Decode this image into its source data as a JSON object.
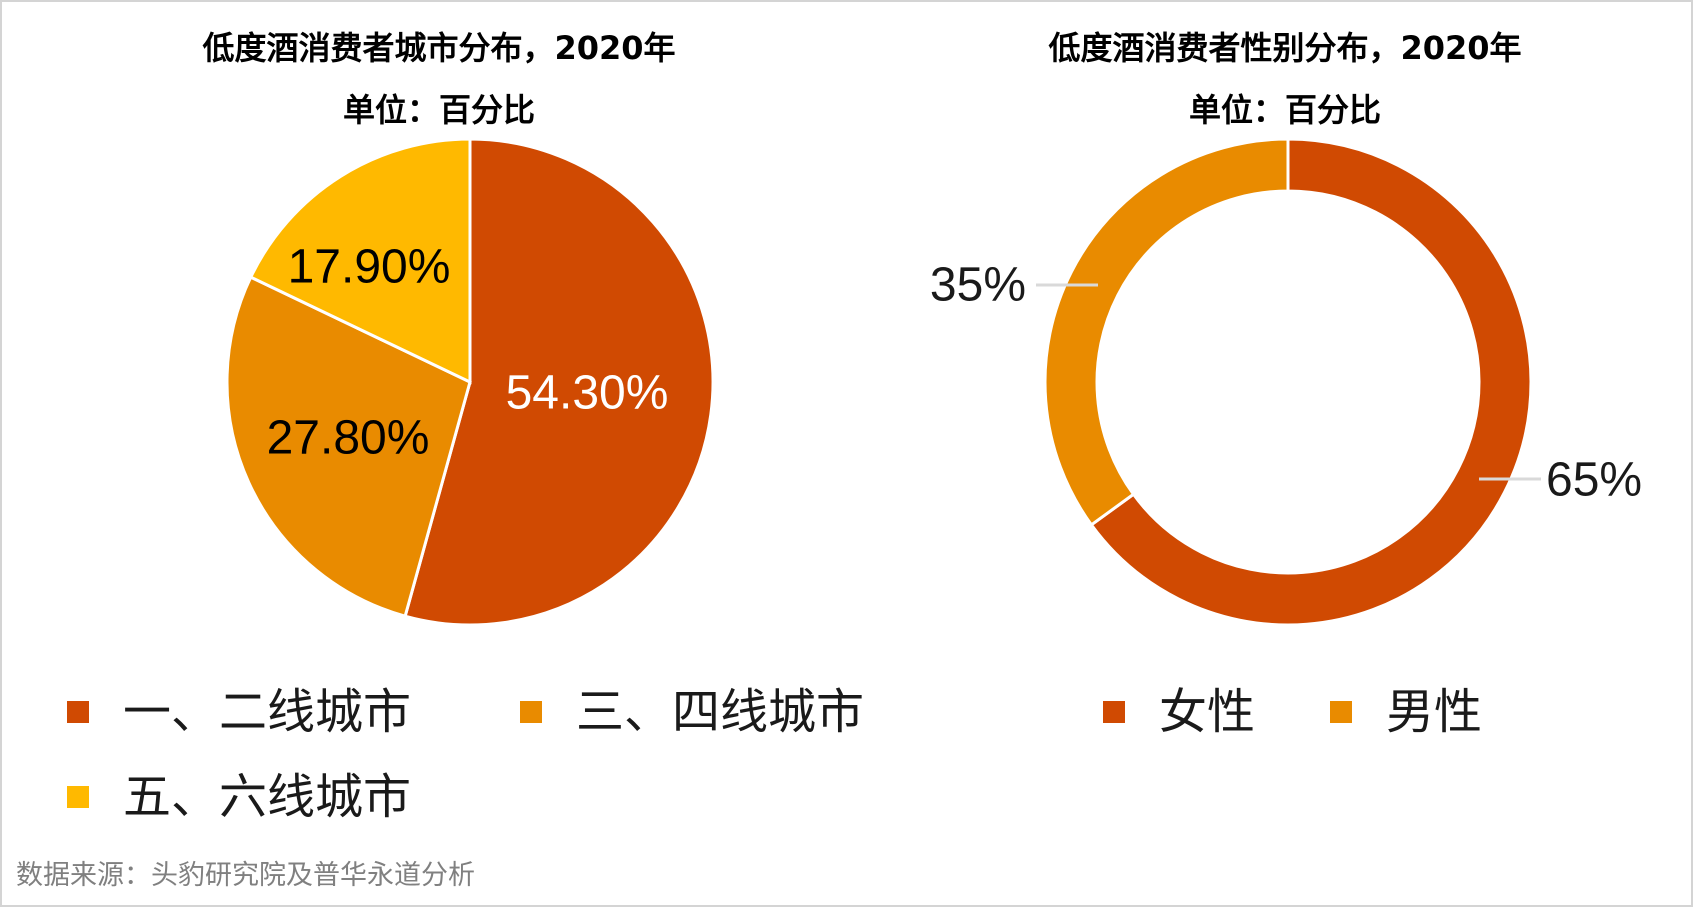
{
  "source": "数据来源：头豹研究院及普华永道分析",
  "chart_data": [
    {
      "type": "pie",
      "title": "低度酒消费者城市分布，2020年",
      "subtitle": "单位：百分比",
      "categories": [
        "一、二线城市",
        "三、四线城市",
        "五、六线城市"
      ],
      "values": [
        54.3,
        27.8,
        17.9
      ],
      "data_labels": [
        "54.30%",
        "27.80%",
        "17.90%"
      ],
      "colors": [
        "#D04A02",
        "#E98B00",
        "#FFB900"
      ],
      "legend_position": "bottom"
    },
    {
      "type": "pie",
      "donut": true,
      "title": "低度酒消费者性别分布，2020年",
      "subtitle": "单位：百分比",
      "categories": [
        "女性",
        "男性"
      ],
      "values": [
        65,
        35
      ],
      "data_labels": [
        "65%",
        "35%"
      ],
      "colors": [
        "#D04A02",
        "#E98B00"
      ],
      "legend_position": "bottom"
    }
  ]
}
